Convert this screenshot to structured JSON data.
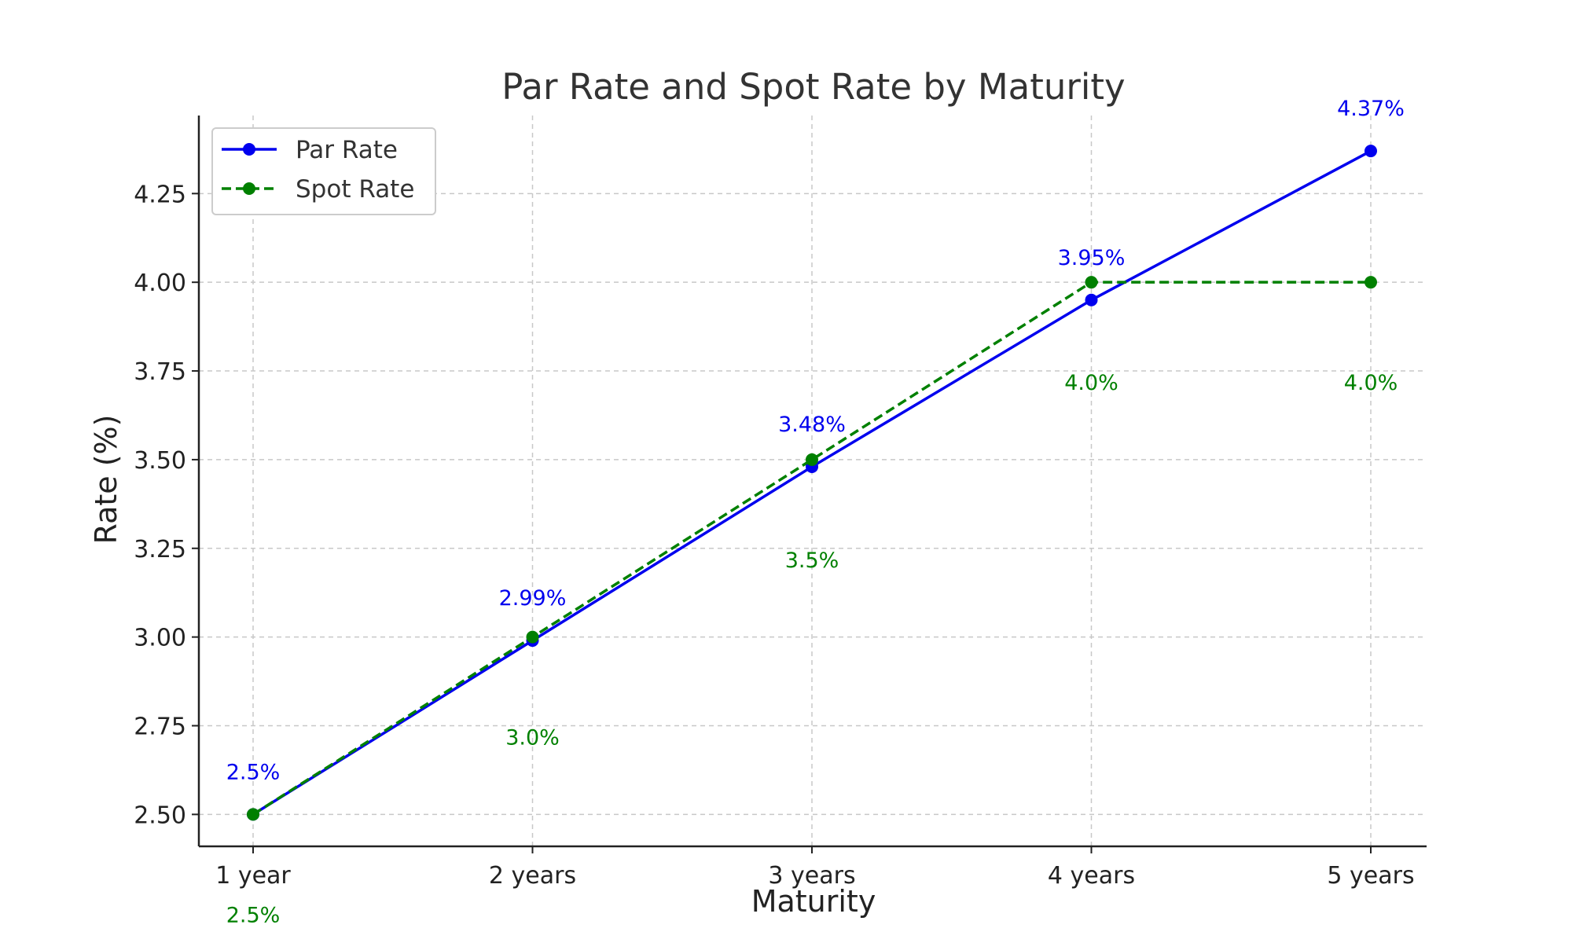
{
  "chart_data": {
    "type": "line",
    "title": "Par Rate and Spot Rate by Maturity",
    "xlabel": "Maturity",
    "ylabel": "Rate (%)",
    "categories": [
      "1 year",
      "2 years",
      "3 years",
      "4 years",
      "5 years"
    ],
    "yticks": [
      "2.50",
      "2.75",
      "3.00",
      "3.25",
      "3.50",
      "3.75",
      "4.00",
      "4.25"
    ],
    "ylim": [
      2.41,
      4.47
    ],
    "grid": true,
    "legend_position": "top-left",
    "series": [
      {
        "name": "Par Rate",
        "values": [
          2.5,
          2.99,
          3.48,
          3.95,
          4.37
        ],
        "labels": [
          "2.5%",
          "2.99%",
          "3.48%",
          "3.95%",
          "4.37%"
        ],
        "color": "#0000ee",
        "style": "solid"
      },
      {
        "name": "Spot Rate",
        "values": [
          2.5,
          3.0,
          3.5,
          4.0,
          4.0
        ],
        "labels": [
          "2.5%",
          "3.0%",
          "3.5%",
          "4.0%",
          "4.0%"
        ],
        "color": "#008000",
        "style": "dashed"
      }
    ]
  }
}
